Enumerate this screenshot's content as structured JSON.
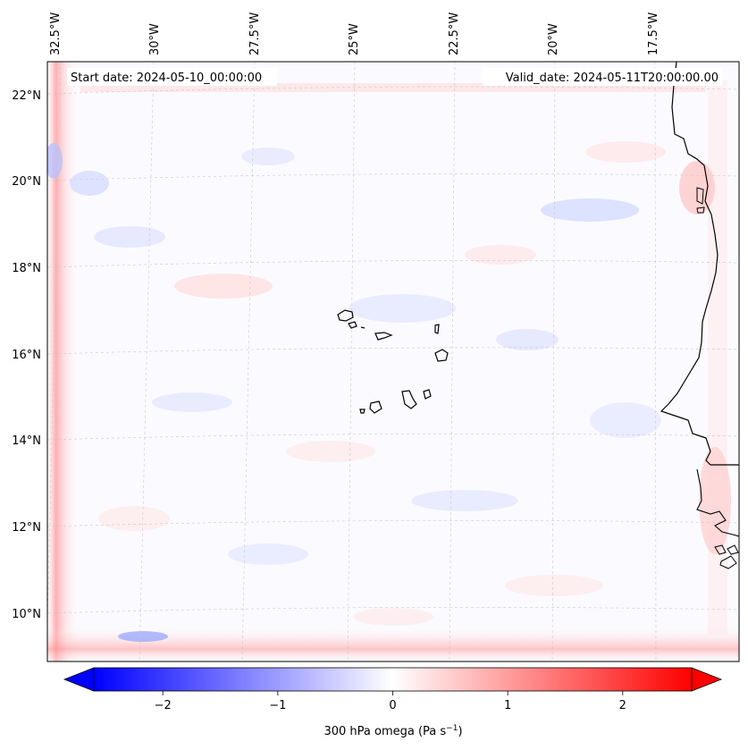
{
  "map": {
    "start_label": "Start date: 2024-05-10_00:00:00",
    "valid_label": "Valid_date: 2024-05-11T20:00:00.00",
    "field": "300 hPa omega",
    "lat_labels": [
      "22°N",
      "20°N",
      "18°N",
      "16°N",
      "14°N",
      "12°N",
      "10°N"
    ],
    "lon_labels": [
      "32.5°W",
      "30°W",
      "27.5°W",
      "25°W",
      "22.5°W",
      "20°W",
      "17.5°W"
    ]
  },
  "colorbar": {
    "label_main": "300 hPa omega (Pa s",
    "label_exp": "−1",
    "label_close": ")",
    "ticks": [
      "−2",
      "−1",
      "0",
      "1",
      "2"
    ],
    "tick_values": [
      -2,
      -1,
      0,
      1,
      2
    ],
    "vmin": -2.6,
    "vmax": 2.6,
    "colors": {
      "negative": "#0000ff",
      "zero": "#ffffff",
      "positive": "#ff0000"
    }
  }
}
